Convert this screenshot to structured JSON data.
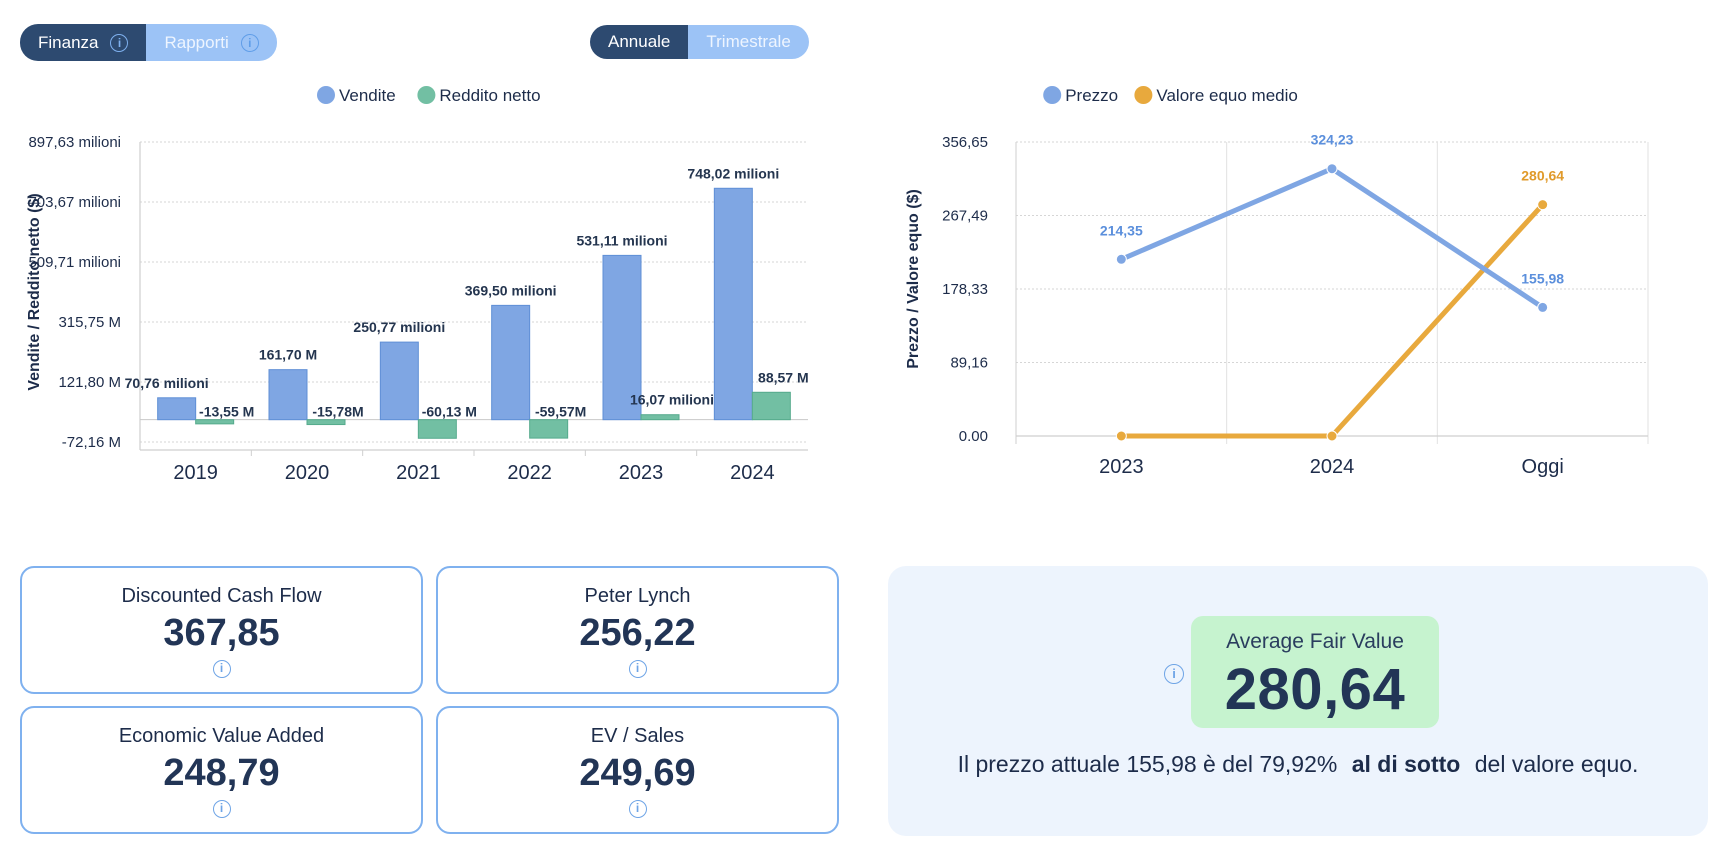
{
  "tabs_left": {
    "finance": "Finanza",
    "reports": "Rapporti"
  },
  "tabs_period": {
    "annual": "Annuale",
    "quarterly": "Trimestrale"
  },
  "colors": {
    "sales": "#7fa6e3",
    "net": "#72bfa3",
    "price": "#7fa6e3",
    "fair": "#e8a93d",
    "label_price": "#5b8fdc",
    "label_fair": "#e09a2a"
  },
  "chart_data": [
    {
      "type": "bar",
      "categories": [
        "2019",
        "2020",
        "2021",
        "2022",
        "2023",
        "2024"
      ],
      "series": [
        {
          "name": "Vendite",
          "values": [
            70.76,
            161.7,
            250.77,
            369.5,
            531.11,
            748.02
          ],
          "labels": [
            "70,76 milioni",
            "161,70 M",
            "250,77 milioni",
            "369,50 milioni",
            "531,11 milioni",
            "748,02 milioni"
          ]
        },
        {
          "name": "Reddito netto",
          "values": [
            -13.55,
            -15.78,
            -60.13,
            -59.57,
            16.07,
            88.57
          ],
          "labels": [
            "-13,55 M",
            "-15,78M",
            "-60,13 M",
            "-59,57M",
            "16,07 milioni",
            "88,57 M"
          ]
        }
      ],
      "ylabel": "Vendite / Reddito netto ($)",
      "yticks": [
        "897,63 milioni",
        "703,67 milioni",
        "509,71 milioni",
        "315,75 M",
        "121,80 M",
        "-72,16 M"
      ],
      "ytick_values": [
        897.63,
        703.67,
        509.71,
        315.75,
        121.8,
        -72.16
      ],
      "ylim": [
        -72.16,
        897.63
      ],
      "legend": "top-center",
      "grid": true
    },
    {
      "type": "line",
      "categories": [
        "2023",
        "2024",
        "Oggi"
      ],
      "series": [
        {
          "name": "Prezzo",
          "values": [
            214.35,
            324.23,
            155.98
          ],
          "labels": [
            "214,35",
            "324,23",
            "155,98"
          ]
        },
        {
          "name": "Valore equo medio",
          "values": [
            0,
            0,
            280.64
          ],
          "labels": [
            "",
            "",
            "280,64"
          ]
        }
      ],
      "ylabel": "Prezzo / Valore equo ($)",
      "yticks": [
        "356,65",
        "267,49",
        "178,33",
        "89,16",
        "0.00"
      ],
      "ytick_values": [
        356.65,
        267.49,
        178.33,
        89.16,
        0
      ],
      "ylim": [
        0,
        356.65
      ],
      "legend": "top-center",
      "grid": true
    }
  ],
  "valuations": [
    {
      "label": "Discounted Cash Flow",
      "value": "367,85"
    },
    {
      "label": "Peter Lynch",
      "value": "256,22"
    },
    {
      "label": "Economic Value Added",
      "value": "248,79"
    },
    {
      "label": "EV / Sales",
      "value": "249,69"
    }
  ],
  "fair_value": {
    "title": "Average Fair Value",
    "value": "280,64",
    "text_before": "Il prezzo attuale 155,98 è  del 79,92%",
    "text_bold": "al di sotto",
    "text_after": "del valore equo."
  },
  "info_glyph": "i"
}
